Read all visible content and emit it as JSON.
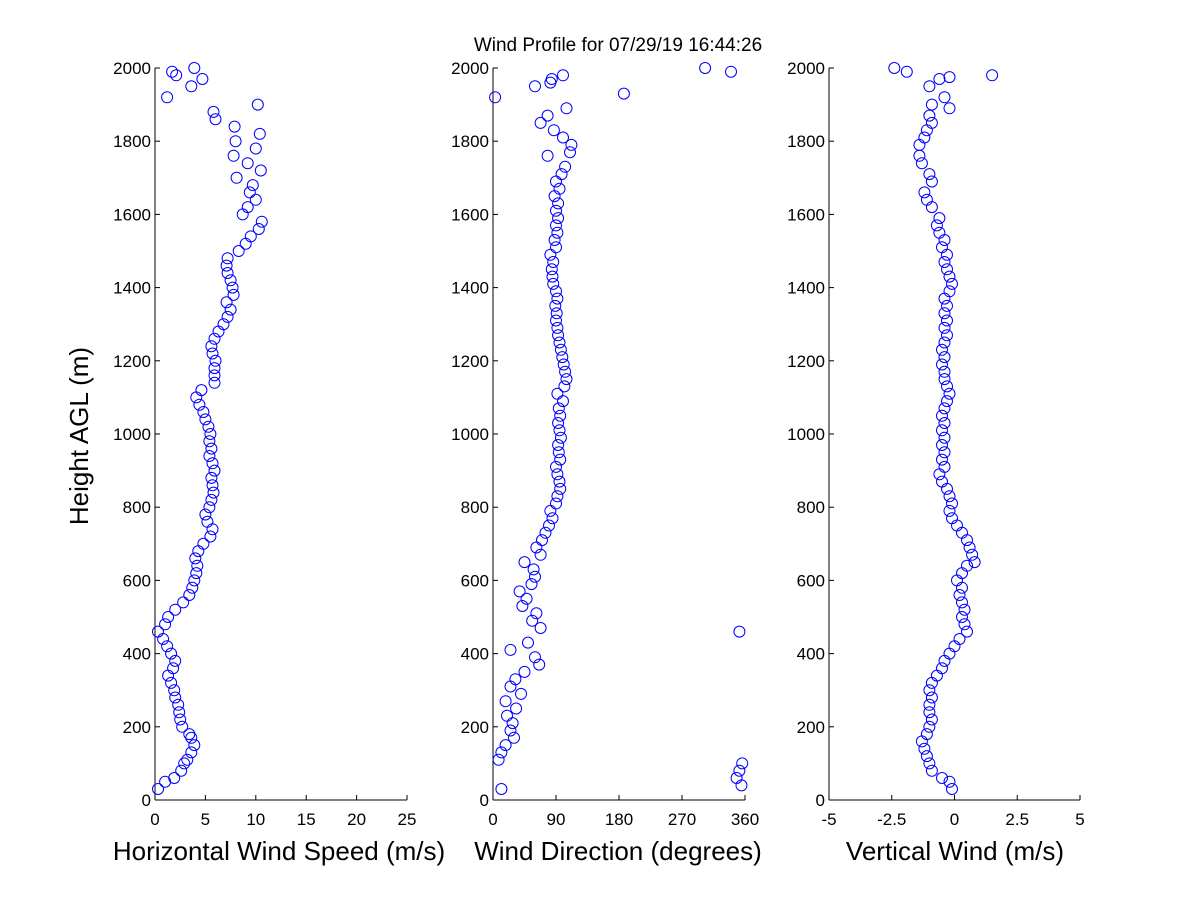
{
  "figure_title": "Wind Profile for  07/29/19 16:44:26",
  "marker_color": "#0000ff",
  "chart_data": [
    {
      "type": "scatter",
      "xlabel": "Horizontal Wind Speed (m/s)",
      "ylabel": "Height AGL (m)",
      "xlim": [
        0,
        25
      ],
      "ylim": [
        0,
        2000
      ],
      "xticks": [
        "0",
        "5",
        "10",
        "15",
        "20",
        "25"
      ],
      "yticks": [
        "0",
        "200",
        "400",
        "600",
        "800",
        "1000",
        "1200",
        "1400",
        "1600",
        "1800",
        "2000"
      ],
      "grid": false,
      "points": [
        [
          0.3,
          30
        ],
        [
          1.0,
          50
        ],
        [
          1.9,
          60
        ],
        [
          2.6,
          80
        ],
        [
          2.9,
          100
        ],
        [
          3.2,
          110
        ],
        [
          3.6,
          130
        ],
        [
          3.9,
          150
        ],
        [
          3.6,
          170
        ],
        [
          3.4,
          180
        ],
        [
          2.7,
          200
        ],
        [
          2.5,
          220
        ],
        [
          2.4,
          240
        ],
        [
          2.3,
          260
        ],
        [
          2.0,
          280
        ],
        [
          1.9,
          300
        ],
        [
          1.6,
          320
        ],
        [
          1.3,
          340
        ],
        [
          1.8,
          360
        ],
        [
          2.0,
          380
        ],
        [
          1.6,
          400
        ],
        [
          1.2,
          420
        ],
        [
          0.8,
          440
        ],
        [
          0.3,
          460
        ],
        [
          1.0,
          480
        ],
        [
          1.3,
          500
        ],
        [
          2.0,
          520
        ],
        [
          2.8,
          540
        ],
        [
          3.4,
          560
        ],
        [
          3.7,
          580
        ],
        [
          3.9,
          600
        ],
        [
          4.1,
          620
        ],
        [
          4.2,
          640
        ],
        [
          4.0,
          660
        ],
        [
          4.3,
          680
        ],
        [
          4.8,
          700
        ],
        [
          5.5,
          720
        ],
        [
          5.7,
          740
        ],
        [
          5.2,
          760
        ],
        [
          5.0,
          780
        ],
        [
          5.4,
          800
        ],
        [
          5.6,
          820
        ],
        [
          5.8,
          840
        ],
        [
          5.7,
          860
        ],
        [
          5.6,
          880
        ],
        [
          5.9,
          900
        ],
        [
          5.7,
          920
        ],
        [
          5.4,
          940
        ],
        [
          5.6,
          960
        ],
        [
          5.4,
          980
        ],
        [
          5.5,
          1000
        ],
        [
          5.3,
          1020
        ],
        [
          5.0,
          1040
        ],
        [
          4.8,
          1060
        ],
        [
          4.4,
          1080
        ],
        [
          4.1,
          1100
        ],
        [
          4.6,
          1120
        ],
        [
          5.9,
          1140
        ],
        [
          5.9,
          1160
        ],
        [
          5.9,
          1180
        ],
        [
          6.0,
          1200
        ],
        [
          5.7,
          1220
        ],
        [
          5.6,
          1240
        ],
        [
          5.9,
          1260
        ],
        [
          6.3,
          1280
        ],
        [
          6.8,
          1300
        ],
        [
          7.2,
          1320
        ],
        [
          7.5,
          1340
        ],
        [
          7.1,
          1360
        ],
        [
          7.8,
          1380
        ],
        [
          7.7,
          1400
        ],
        [
          7.5,
          1420
        ],
        [
          7.2,
          1440
        ],
        [
          7.1,
          1460
        ],
        [
          7.2,
          1480
        ],
        [
          8.3,
          1500
        ],
        [
          9.0,
          1520
        ],
        [
          9.5,
          1540
        ],
        [
          10.3,
          1560
        ],
        [
          10.6,
          1580
        ],
        [
          8.7,
          1600
        ],
        [
          9.2,
          1620
        ],
        [
          10.0,
          1640
        ],
        [
          9.4,
          1660
        ],
        [
          9.7,
          1680
        ],
        [
          8.1,
          1700
        ],
        [
          10.5,
          1720
        ],
        [
          9.2,
          1740
        ],
        [
          7.8,
          1760
        ],
        [
          10.0,
          1780
        ],
        [
          8.0,
          1800
        ],
        [
          10.4,
          1820
        ],
        [
          7.9,
          1840
        ],
        [
          6.0,
          1860
        ],
        [
          5.8,
          1880
        ],
        [
          10.2,
          1900
        ],
        [
          1.2,
          1920
        ],
        [
          3.6,
          1950
        ],
        [
          4.7,
          1970
        ],
        [
          2.1,
          1980
        ],
        [
          1.7,
          1990
        ],
        [
          3.9,
          2000
        ]
      ]
    },
    {
      "type": "scatter",
      "xlabel": "Wind Direction (degrees)",
      "xlim": [
        0,
        360
      ],
      "ylim": [
        0,
        2000
      ],
      "xticks": [
        "0",
        "90",
        "180",
        "270",
        "360"
      ],
      "yticks": [
        "0",
        "200",
        "400",
        "600",
        "800",
        "1000",
        "1200",
        "1400",
        "1600",
        "1800",
        "2000"
      ],
      "grid": false,
      "points": [
        [
          12,
          30
        ],
        [
          355,
          40
        ],
        [
          348,
          60
        ],
        [
          352,
          80
        ],
        [
          356,
          100
        ],
        [
          8,
          110
        ],
        [
          12,
          130
        ],
        [
          18,
          150
        ],
        [
          30,
          170
        ],
        [
          25,
          190
        ],
        [
          28,
          210
        ],
        [
          20,
          230
        ],
        [
          33,
          250
        ],
        [
          18,
          270
        ],
        [
          40,
          290
        ],
        [
          25,
          310
        ],
        [
          32,
          330
        ],
        [
          45,
          350
        ],
        [
          66,
          370
        ],
        [
          60,
          390
        ],
        [
          25,
          410
        ],
        [
          50,
          430
        ],
        [
          352,
          460
        ],
        [
          68,
          470
        ],
        [
          56,
          490
        ],
        [
          62,
          510
        ],
        [
          42,
          530
        ],
        [
          48,
          550
        ],
        [
          38,
          570
        ],
        [
          55,
          590
        ],
        [
          60,
          610
        ],
        [
          58,
          630
        ],
        [
          45,
          650
        ],
        [
          68,
          670
        ],
        [
          62,
          690
        ],
        [
          70,
          710
        ],
        [
          75,
          730
        ],
        [
          80,
          750
        ],
        [
          85,
          770
        ],
        [
          82,
          790
        ],
        [
          90,
          810
        ],
        [
          92,
          830
        ],
        [
          96,
          850
        ],
        [
          95,
          870
        ],
        [
          92,
          890
        ],
        [
          90,
          910
        ],
        [
          96,
          930
        ],
        [
          94,
          950
        ],
        [
          93,
          970
        ],
        [
          97,
          990
        ],
        [
          95,
          1010
        ],
        [
          93,
          1030
        ],
        [
          96,
          1050
        ],
        [
          94,
          1070
        ],
        [
          100,
          1090
        ],
        [
          92,
          1110
        ],
        [
          102,
          1130
        ],
        [
          105,
          1150
        ],
        [
          103,
          1170
        ],
        [
          101,
          1190
        ],
        [
          99,
          1210
        ],
        [
          97,
          1230
        ],
        [
          95,
          1250
        ],
        [
          93,
          1270
        ],
        [
          92,
          1290
        ],
        [
          90,
          1310
        ],
        [
          91,
          1330
        ],
        [
          89,
          1350
        ],
        [
          92,
          1370
        ],
        [
          90,
          1390
        ],
        [
          86,
          1410
        ],
        [
          85,
          1430
        ],
        [
          84,
          1450
        ],
        [
          86,
          1470
        ],
        [
          82,
          1490
        ],
        [
          90,
          1510
        ],
        [
          88,
          1530
        ],
        [
          92,
          1550
        ],
        [
          90,
          1570
        ],
        [
          93,
          1590
        ],
        [
          90,
          1610
        ],
        [
          93,
          1630
        ],
        [
          88,
          1650
        ],
        [
          95,
          1670
        ],
        [
          90,
          1690
        ],
        [
          98,
          1710
        ],
        [
          103,
          1730
        ],
        [
          78,
          1760
        ],
        [
          110,
          1770
        ],
        [
          112,
          1790
        ],
        [
          100,
          1810
        ],
        [
          87,
          1830
        ],
        [
          68,
          1850
        ],
        [
          78,
          1870
        ],
        [
          105,
          1890
        ],
        [
          3,
          1920
        ],
        [
          187,
          1930
        ],
        [
          60,
          1950
        ],
        [
          82,
          1960
        ],
        [
          84,
          1970
        ],
        [
          100,
          1980
        ],
        [
          340,
          1990
        ],
        [
          303,
          2000
        ]
      ]
    },
    {
      "type": "scatter",
      "xlabel": "Vertical Wind (m/s)",
      "xlim": [
        -5,
        5
      ],
      "ylim": [
        0,
        2000
      ],
      "xticks": [
        "-5",
        "-2.5",
        "0",
        "2.5",
        "5"
      ],
      "yticks": [
        "0",
        "200",
        "400",
        "600",
        "800",
        "1000",
        "1200",
        "1400",
        "1600",
        "1800",
        "2000"
      ],
      "grid": false,
      "points": [
        [
          -0.1,
          30
        ],
        [
          -0.2,
          50
        ],
        [
          -0.5,
          60
        ],
        [
          -0.9,
          80
        ],
        [
          -1.0,
          100
        ],
        [
          -1.1,
          120
        ],
        [
          -1.2,
          140
        ],
        [
          -1.3,
          160
        ],
        [
          -1.1,
          180
        ],
        [
          -1.0,
          200
        ],
        [
          -0.9,
          220
        ],
        [
          -1.0,
          240
        ],
        [
          -1.0,
          260
        ],
        [
          -0.9,
          280
        ],
        [
          -1.0,
          300
        ],
        [
          -0.9,
          320
        ],
        [
          -0.7,
          340
        ],
        [
          -0.5,
          360
        ],
        [
          -0.4,
          380
        ],
        [
          -0.2,
          400
        ],
        [
          0.0,
          420
        ],
        [
          0.2,
          440
        ],
        [
          0.5,
          460
        ],
        [
          0.4,
          480
        ],
        [
          0.3,
          500
        ],
        [
          0.4,
          520
        ],
        [
          0.3,
          540
        ],
        [
          0.2,
          560
        ],
        [
          0.3,
          580
        ],
        [
          0.1,
          600
        ],
        [
          0.3,
          620
        ],
        [
          0.5,
          640
        ],
        [
          0.8,
          650
        ],
        [
          0.7,
          670
        ],
        [
          0.6,
          690
        ],
        [
          0.5,
          710
        ],
        [
          0.3,
          730
        ],
        [
          0.1,
          750
        ],
        [
          -0.1,
          770
        ],
        [
          -0.2,
          790
        ],
        [
          -0.1,
          810
        ],
        [
          -0.2,
          830
        ],
        [
          -0.3,
          850
        ],
        [
          -0.5,
          870
        ],
        [
          -0.6,
          890
        ],
        [
          -0.4,
          910
        ],
        [
          -0.5,
          930
        ],
        [
          -0.4,
          950
        ],
        [
          -0.5,
          970
        ],
        [
          -0.4,
          990
        ],
        [
          -0.5,
          1010
        ],
        [
          -0.4,
          1030
        ],
        [
          -0.5,
          1050
        ],
        [
          -0.4,
          1070
        ],
        [
          -0.3,
          1090
        ],
        [
          -0.2,
          1110
        ],
        [
          -0.3,
          1130
        ],
        [
          -0.4,
          1150
        ],
        [
          -0.4,
          1170
        ],
        [
          -0.5,
          1190
        ],
        [
          -0.4,
          1210
        ],
        [
          -0.5,
          1230
        ],
        [
          -0.4,
          1250
        ],
        [
          -0.3,
          1270
        ],
        [
          -0.4,
          1290
        ],
        [
          -0.3,
          1310
        ],
        [
          -0.4,
          1330
        ],
        [
          -0.3,
          1350
        ],
        [
          -0.4,
          1370
        ],
        [
          -0.2,
          1390
        ],
        [
          -0.1,
          1410
        ],
        [
          -0.2,
          1430
        ],
        [
          -0.3,
          1450
        ],
        [
          -0.4,
          1470
        ],
        [
          -0.3,
          1490
        ],
        [
          -0.5,
          1510
        ],
        [
          -0.4,
          1530
        ],
        [
          -0.6,
          1550
        ],
        [
          -0.7,
          1570
        ],
        [
          -0.6,
          1590
        ],
        [
          -0.9,
          1620
        ],
        [
          -1.1,
          1640
        ],
        [
          -1.2,
          1660
        ],
        [
          -0.9,
          1690
        ],
        [
          -1.0,
          1710
        ],
        [
          -1.3,
          1740
        ],
        [
          -1.4,
          1760
        ],
        [
          -1.4,
          1790
        ],
        [
          -1.2,
          1810
        ],
        [
          -1.1,
          1830
        ],
        [
          -0.9,
          1850
        ],
        [
          -1.0,
          1870
        ],
        [
          -0.2,
          1890
        ],
        [
          -0.9,
          1900
        ],
        [
          -0.4,
          1920
        ],
        [
          -1.0,
          1950
        ],
        [
          -0.6,
          1970
        ],
        [
          -0.2,
          1975
        ],
        [
          1.5,
          1980
        ],
        [
          -1.9,
          1990
        ],
        [
          -2.4,
          2000
        ]
      ]
    }
  ]
}
